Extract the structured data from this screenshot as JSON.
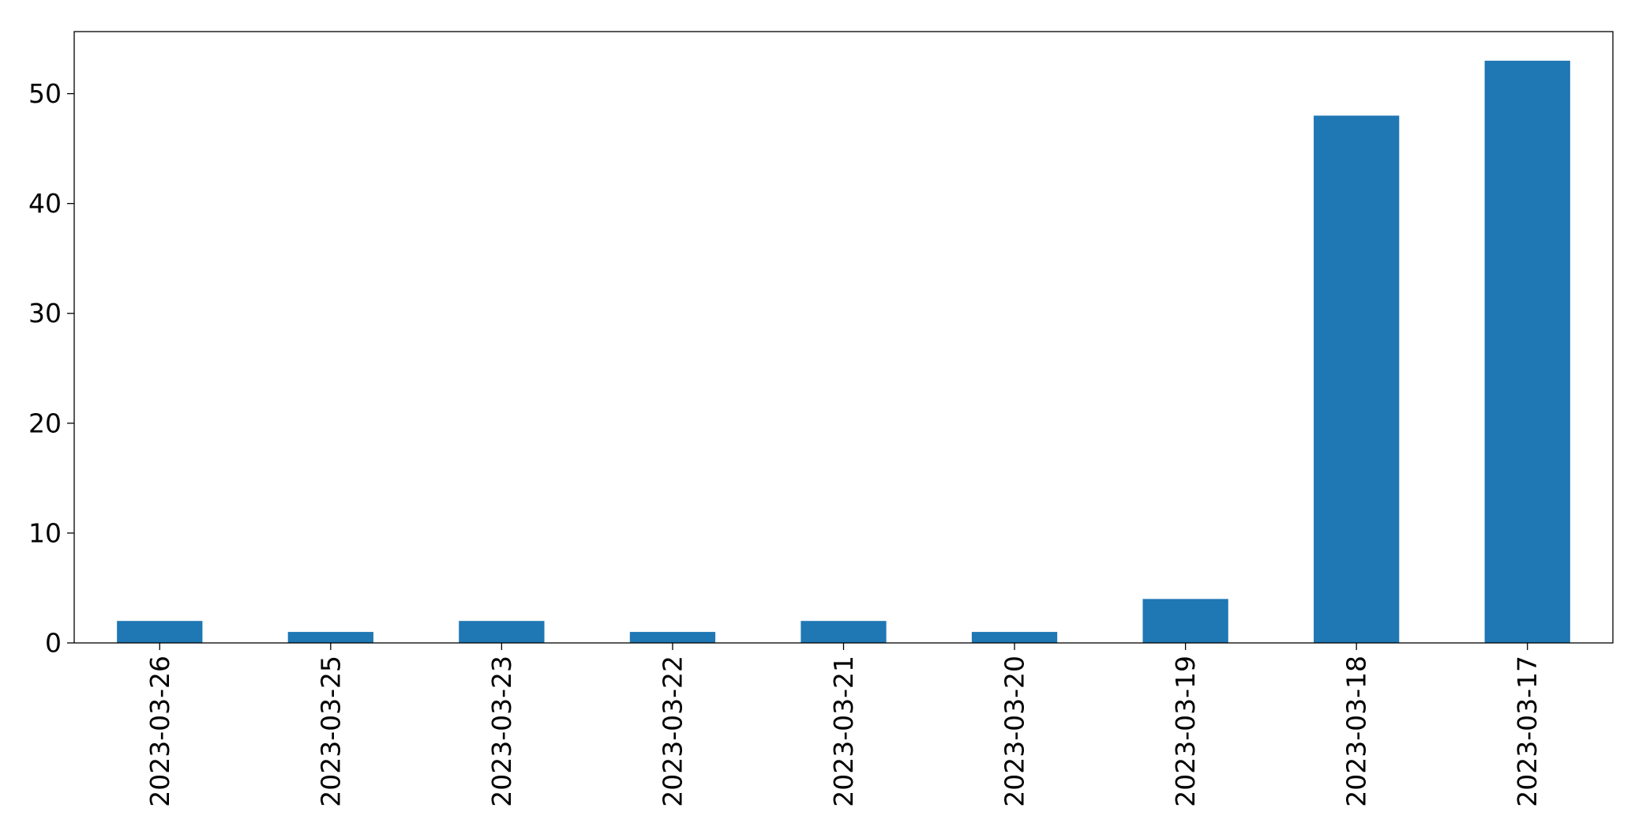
{
  "chart_data": {
    "type": "bar",
    "title": "",
    "xlabel": "",
    "ylabel": "",
    "categories": [
      "2023-03-26",
      "2023-03-25",
      "2023-03-23",
      "2023-03-22",
      "2023-03-21",
      "2023-03-20",
      "2023-03-19",
      "2023-03-18",
      "2023-03-17"
    ],
    "values": [
      2,
      1,
      2,
      1,
      2,
      1,
      4,
      48,
      53
    ],
    "ylim": [
      0,
      55.65
    ],
    "yticks": [
      0,
      10,
      20,
      30,
      40,
      50
    ],
    "ytick_labels": [
      "0",
      "10",
      "20",
      "30",
      "40",
      "50"
    ],
    "bar_color": "#1f77b4",
    "grid": false,
    "legend": "none"
  }
}
